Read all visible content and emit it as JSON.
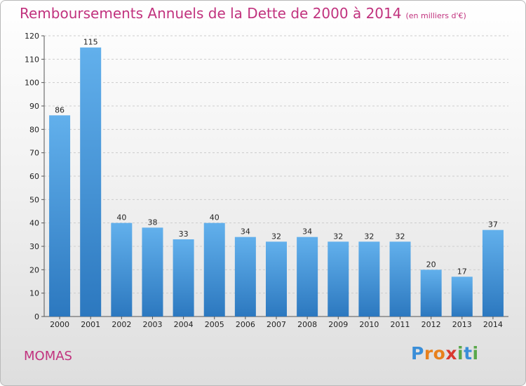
{
  "title": "Remboursements Annuels de la Dette de 2000 à 2014",
  "unit": "(en milliers d'€)",
  "town": "MOMAS",
  "logo": {
    "letters": [
      "P",
      "r",
      "o",
      "x",
      "i",
      "t",
      "i"
    ],
    "colors": [
      "#3a8ed8",
      "#e8801c",
      "#e8801c",
      "#d93a2f",
      "#5aa84a",
      "#3a8ed8",
      "#5aa84a"
    ]
  },
  "colors": {
    "title": "#c1327e",
    "bar_light": "#62b0ec",
    "bar_dark": "#2c78bf",
    "grid": "#cccccc"
  },
  "chart_data": {
    "type": "bar",
    "categories": [
      "2000",
      "2001",
      "2002",
      "2003",
      "2004",
      "2005",
      "2006",
      "2007",
      "2008",
      "2009",
      "2010",
      "2011",
      "2012",
      "2013",
      "2014"
    ],
    "values": [
      86,
      115,
      40,
      38,
      33,
      40,
      34,
      32,
      34,
      32,
      32,
      32,
      20,
      17,
      37
    ],
    "ylim": [
      0,
      120
    ],
    "yticks": [
      0,
      10,
      20,
      30,
      40,
      50,
      60,
      70,
      80,
      90,
      100,
      110,
      120
    ],
    "grid": true,
    "data_labels": true
  }
}
